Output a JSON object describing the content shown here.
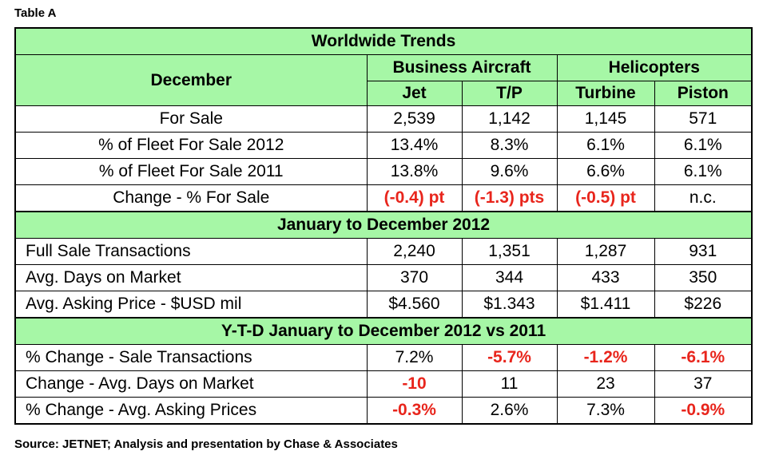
{
  "caption": "Table A",
  "source": "Source: JETNET; Analysis and presentation by Chase & Associates",
  "header": {
    "title": "Worldwide Trends",
    "row_label": "December",
    "group1": "Business Aircraft",
    "group2": "Helicopters",
    "cols": [
      "Jet",
      "T/P",
      "Turbine",
      "Piston"
    ]
  },
  "section1": {
    "rows": [
      {
        "label": "For Sale",
        "values": [
          "2,539",
          "1,142",
          "1,145",
          "571"
        ]
      },
      {
        "label": "% of Fleet For Sale 2012",
        "values": [
          "13.4%",
          "8.3%",
          "6.1%",
          "6.1%"
        ]
      },
      {
        "label": "% of Fleet For Sale 2011",
        "values": [
          "13.8%",
          "9.6%",
          "6.6%",
          "6.1%"
        ]
      },
      {
        "label": "Change - % For Sale",
        "values": [
          "(-0.4) pt",
          "(-1.3) pts",
          "(-0.5) pt",
          "n.c."
        ]
      }
    ]
  },
  "section2": {
    "title": "January to December 2012",
    "rows": [
      {
        "label": "Full Sale Transactions",
        "values": [
          "2,240",
          "1,351",
          "1,287",
          "931"
        ]
      },
      {
        "label": "Avg. Days on Market",
        "values": [
          "370",
          "344",
          "433",
          "350"
        ]
      },
      {
        "label": "Avg. Asking Price - $USD mil",
        "values": [
          "$4.560",
          "$1.343",
          "$1.411",
          "$226"
        ]
      }
    ]
  },
  "section3": {
    "title": "Y-T-D January to December 2012 vs 2011",
    "rows": [
      {
        "label": "% Change - Sale Transactions",
        "values": [
          "7.2%",
          "-5.7%",
          "-1.2%",
          "-6.1%"
        ]
      },
      {
        "label": "Change - Avg. Days on Market",
        "values": [
          "-10",
          "11",
          "23",
          "37"
        ]
      },
      {
        "label": "% Change - Avg. Asking Prices",
        "values": [
          "-0.3%",
          "2.6%",
          "7.3%",
          "-0.9%"
        ]
      }
    ]
  },
  "colors": {
    "header_green": "#a6f7a6",
    "negative_red": "#e8251c"
  }
}
